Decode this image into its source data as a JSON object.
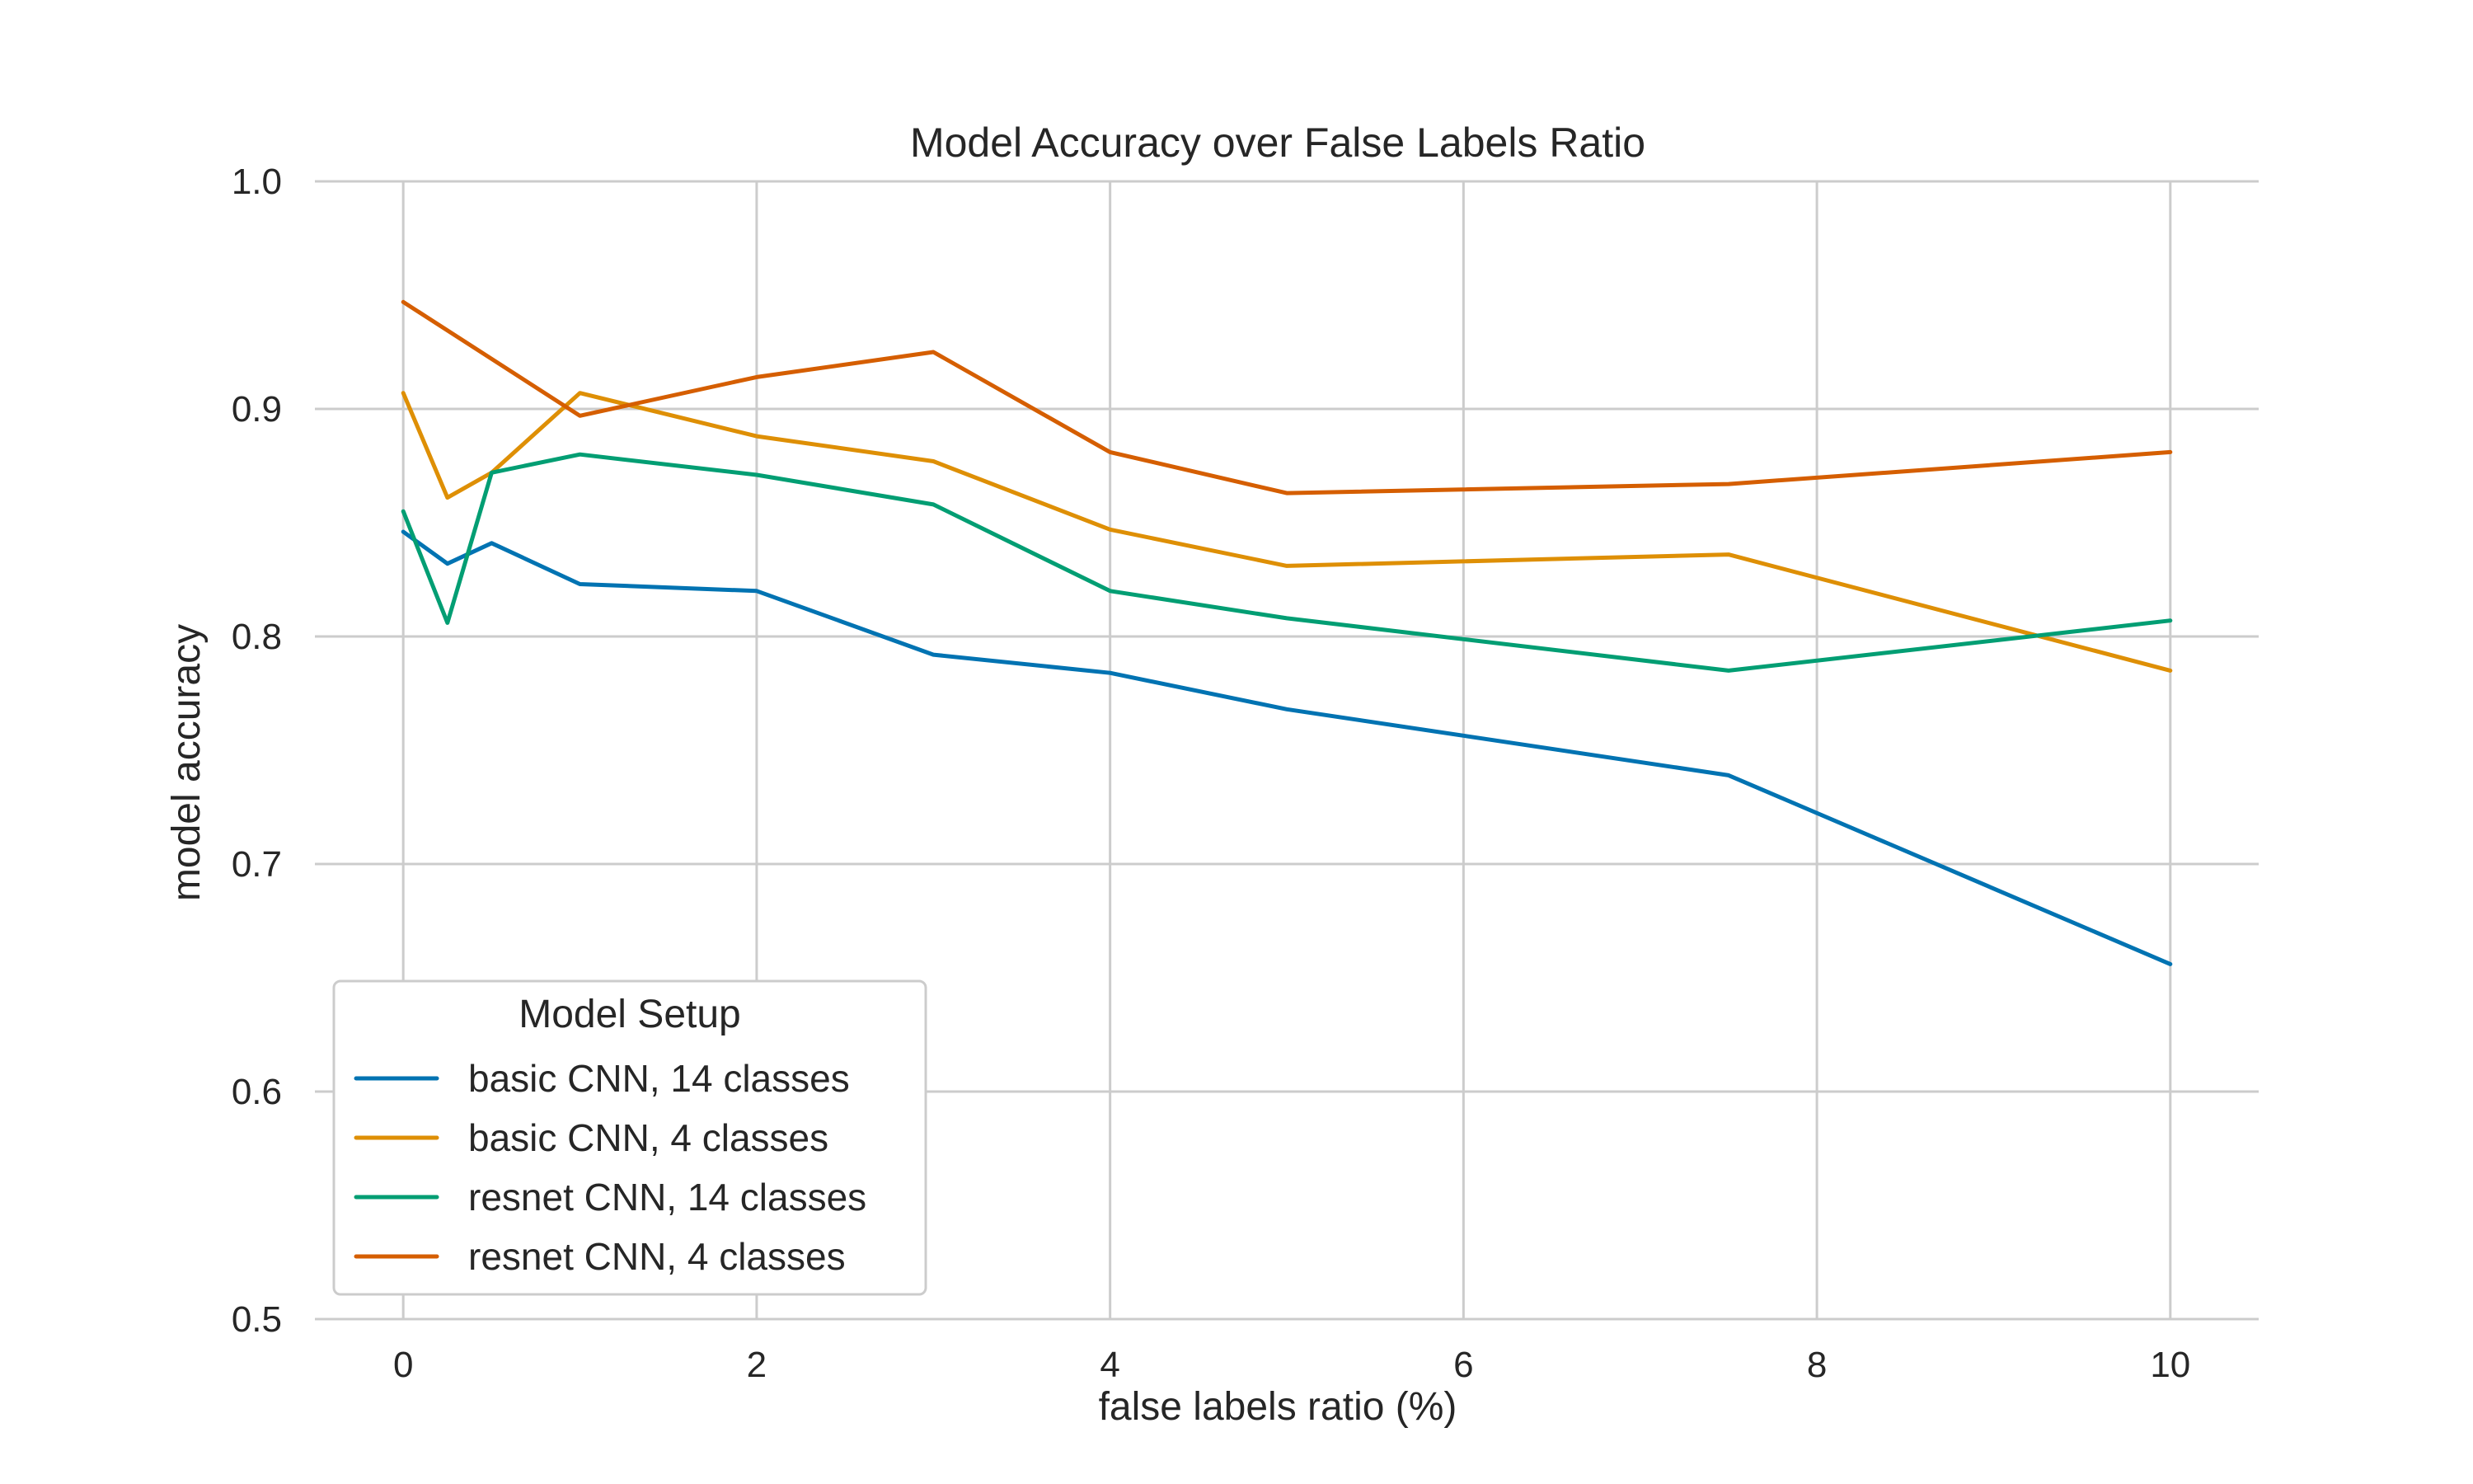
{
  "chart_data": {
    "type": "line",
    "title": "Model Accuracy over False Labels Ratio",
    "xlabel": "false labels ratio (%)",
    "ylabel": "model accuracy",
    "xlim": [
      -0.5,
      10.5
    ],
    "ylim": [
      0.5,
      1.0
    ],
    "xticks": [
      0,
      2,
      4,
      6,
      8,
      10
    ],
    "xtick_labels": [
      "0",
      "2",
      "4",
      "6",
      "8",
      "10"
    ],
    "yticks": [
      0.5,
      0.6,
      0.7,
      0.8,
      0.9,
      1.0
    ],
    "ytick_labels": [
      "0.5",
      "0.6",
      "0.7",
      "0.8",
      "0.9",
      "1.0"
    ],
    "grid": true,
    "legend": {
      "title": "Model Setup",
      "placement": "lower-left"
    },
    "series": [
      {
        "name": "basic CNN, 14 classes",
        "color": "#0173b2",
        "x": [
          0,
          0.25,
          0.5,
          1,
          2,
          3,
          4,
          5,
          7.5,
          10
        ],
        "y": [
          0.846,
          0.832,
          0.841,
          0.823,
          0.82,
          0.792,
          0.784,
          0.768,
          0.739,
          0.656
        ]
      },
      {
        "name": "basic CNN, 4 classes",
        "color": "#de8f05",
        "x": [
          0,
          0.25,
          0.5,
          1,
          2,
          3,
          4,
          5,
          7.5,
          10
        ],
        "y": [
          0.907,
          0.861,
          0.872,
          0.907,
          0.888,
          0.877,
          0.847,
          0.831,
          0.836,
          0.785
        ]
      },
      {
        "name": "resnet CNN, 14 classes",
        "color": "#029e73",
        "x": [
          0,
          0.25,
          0.5,
          1,
          2,
          3,
          4,
          5,
          7.5,
          10
        ],
        "y": [
          0.855,
          0.806,
          0.872,
          0.88,
          0.871,
          0.858,
          0.82,
          0.808,
          0.785,
          0.807
        ]
      },
      {
        "name": "resnet CNN, 4 classes",
        "color": "#d55e00",
        "x": [
          0,
          1,
          2,
          3,
          4,
          5,
          7.5,
          10
        ],
        "y": [
          0.947,
          0.897,
          0.914,
          0.925,
          0.881,
          0.863,
          0.867,
          0.881
        ]
      }
    ]
  }
}
